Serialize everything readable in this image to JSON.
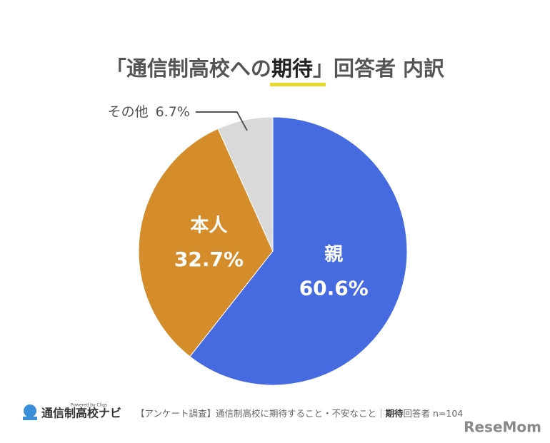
{
  "chart_data": {
    "type": "pie",
    "title_parts": [
      "「通信制高校への",
      "期待",
      "」回答者 内訳"
    ],
    "categories": [
      "親",
      "本人",
      "その他"
    ],
    "values": [
      60.6,
      32.7,
      6.7
    ],
    "value_labels": [
      "60.6%",
      "32.7%",
      "6.7%"
    ],
    "colors": [
      "#466be0",
      "#d58d2c",
      "#d9d9d9"
    ],
    "start_angle": 0,
    "direction": "clockwise"
  },
  "footer": {
    "logo": "通信制高校ナビ",
    "powered_by": "Powered by Cligs",
    "caption_parts": [
      "【アンケート調査】通信制高校に期待すること・不安なこと｜",
      "期待",
      "回答者 n=104"
    ],
    "watermark": "ReseMom"
  }
}
